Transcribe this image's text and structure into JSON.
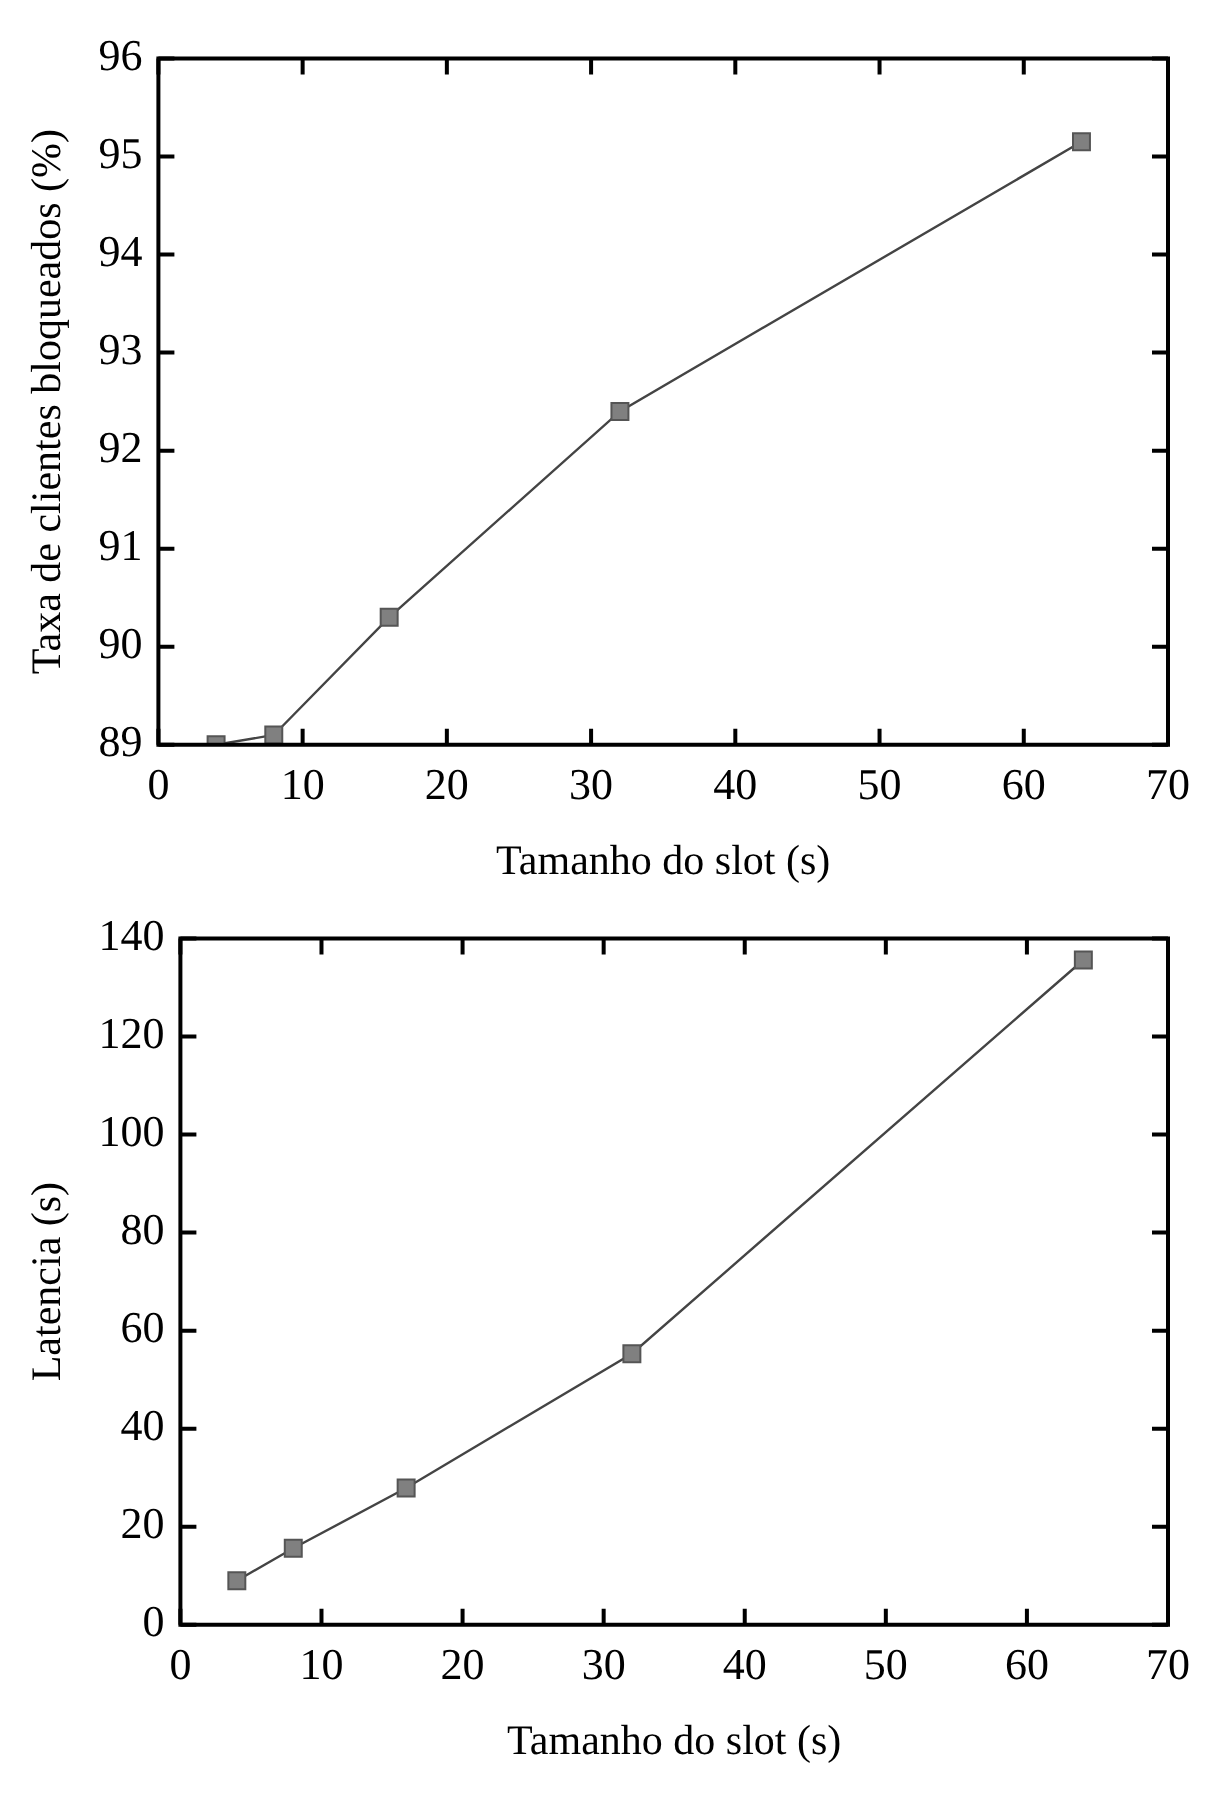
{
  "chart_data": [
    {
      "type": "line",
      "xlabel": "Tamanho do slot (s)",
      "ylabel": "Taxa de clientes bloqueados (%)",
      "x": [
        4,
        8,
        16,
        32,
        64
      ],
      "values": [
        89.0,
        89.1,
        90.3,
        92.4,
        95.15
      ],
      "color": "#808080",
      "marker": "square",
      "xlim": [
        0,
        70
      ],
      "xticks": [
        0,
        10,
        20,
        30,
        40,
        50,
        60,
        70
      ],
      "ylim": [
        89,
        96
      ],
      "yticks": [
        89,
        90,
        91,
        92,
        93,
        94,
        95,
        96
      ]
    },
    {
      "type": "line",
      "xlabel": "Tamanho do slot (s)",
      "ylabel": "Latencia (s)",
      "x": [
        4,
        8,
        16,
        32,
        64
      ],
      "values": [
        9,
        15.6,
        27.9,
        55.3,
        135.6
      ],
      "color": "#808080",
      "marker": "square",
      "xlim": [
        0,
        70
      ],
      "xticks": [
        0,
        10,
        20,
        30,
        40,
        50,
        60,
        70
      ],
      "ylim": [
        0,
        140
      ],
      "yticks": [
        0,
        20,
        40,
        60,
        80,
        100,
        120,
        140
      ]
    }
  ]
}
